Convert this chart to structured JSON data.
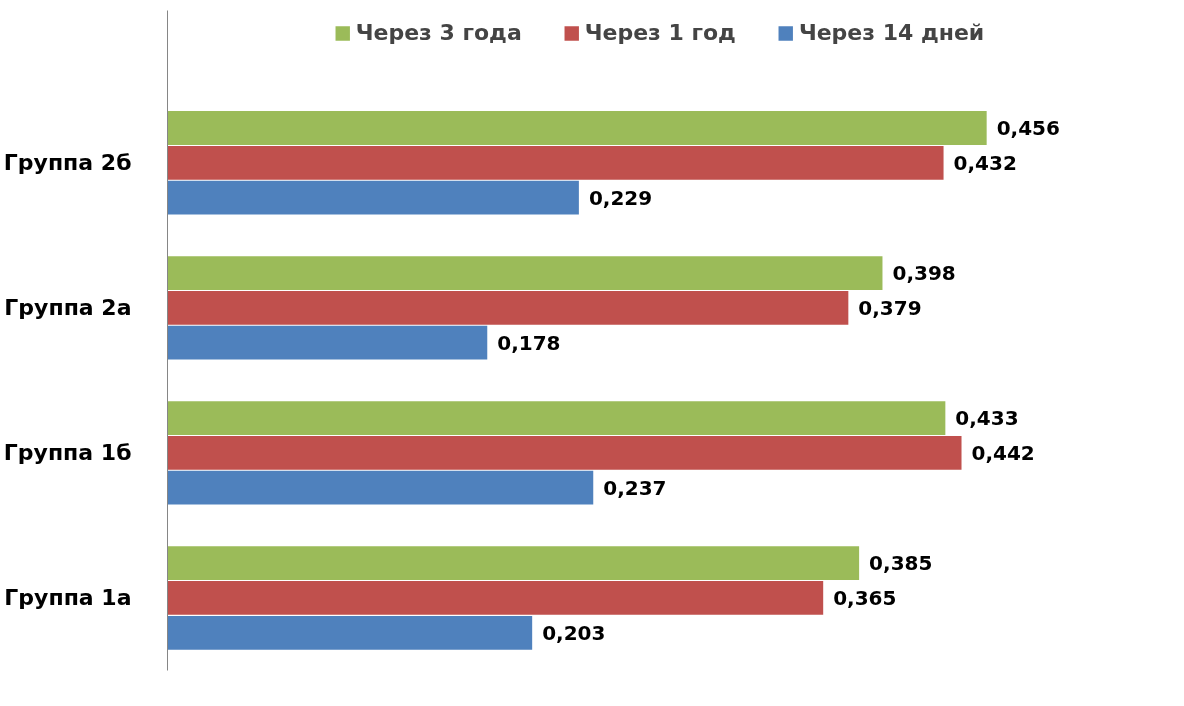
{
  "chart_data": {
    "type": "bar",
    "orientation": "horizontal",
    "categories": [
      "Группа 2б",
      "Группа 2а",
      "Группа 1б",
      "Группа 1а"
    ],
    "tick_labels": "y",
    "grid": false,
    "legend": "top",
    "series": [
      {
        "name": "Через 3 года",
        "color": "#9bbb59",
        "values": [
          0.456,
          0.398,
          0.433,
          0.385
        ],
        "value_labels": [
          "0,456",
          "0,398",
          "0,433",
          "0,385"
        ]
      },
      {
        "name": "Через 1 год",
        "color": "#c0504d",
        "values": [
          0.432,
          0.379,
          0.442,
          0.365
        ],
        "value_labels": [
          "0,432",
          "0,379",
          "0,442",
          "0,365"
        ]
      },
      {
        "name": "Через 14 дней",
        "color": "#4f81bd",
        "values": [
          0.229,
          0.178,
          0.237,
          0.203
        ],
        "value_labels": [
          "0,229",
          "0,178",
          "0,237",
          "0,203"
        ]
      }
    ]
  }
}
